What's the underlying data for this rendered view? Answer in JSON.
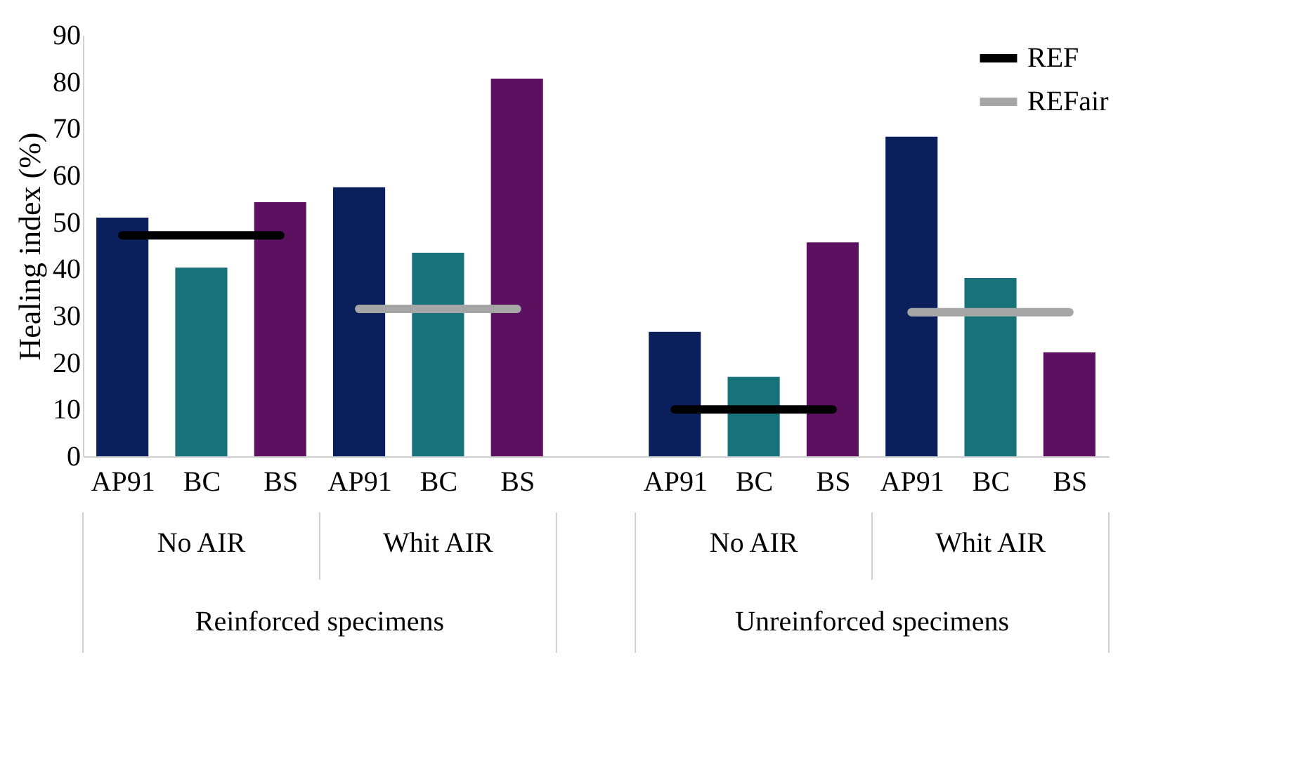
{
  "chart_data": {
    "type": "bar",
    "ylabel": "Healing index (%)",
    "categories": [
      "AP91",
      "BC",
      "BS",
      "AP91",
      "BC",
      "BS",
      null,
      "AP91",
      "BC",
      "BS",
      "AP91",
      "BC",
      "BS"
    ],
    "series": [
      {
        "values": [
          51,
          40.3,
          54.3,
          57.5,
          43.5,
          80.7,
          null,
          26.6,
          17.0,
          45.7,
          68.3,
          38.1,
          22.2
        ],
        "colors": [
          "#0a1f5c",
          "#17727a",
          "#5c1060",
          "#0a1f5c",
          "#17727a",
          "#5c1060",
          "#ffffff",
          "#0a1f5c",
          "#17727a",
          "#5c1060",
          "#0a1f5c",
          "#17727a",
          "#5c1060"
        ]
      },
      {
        "type": "line",
        "name": "REF",
        "color": "#000000",
        "values": [
          47.2,
          47.2,
          47.2,
          null,
          null,
          null,
          null,
          10.0,
          10.0,
          10.0,
          null,
          null,
          null
        ]
      },
      {
        "type": "line",
        "name": "REFair",
        "color": "#a6a6a6",
        "values": [
          null,
          null,
          null,
          31.5,
          31.5,
          31.5,
          null,
          null,
          null,
          null,
          30.8,
          30.8,
          30.8
        ]
      }
    ],
    "ylim": [
      0,
      90
    ],
    "yticks": [
      0,
      10,
      20,
      30,
      40,
      50,
      60,
      70,
      80,
      90
    ],
    "grid": false,
    "legend": "top right",
    "line_style": "solid",
    "marker": "none",
    "annotations": [
      "No AIR",
      "Whit AIR",
      "No AIR",
      "Whit AIR",
      "Reinforced specimens",
      "Unreinforced specimens"
    ]
  }
}
